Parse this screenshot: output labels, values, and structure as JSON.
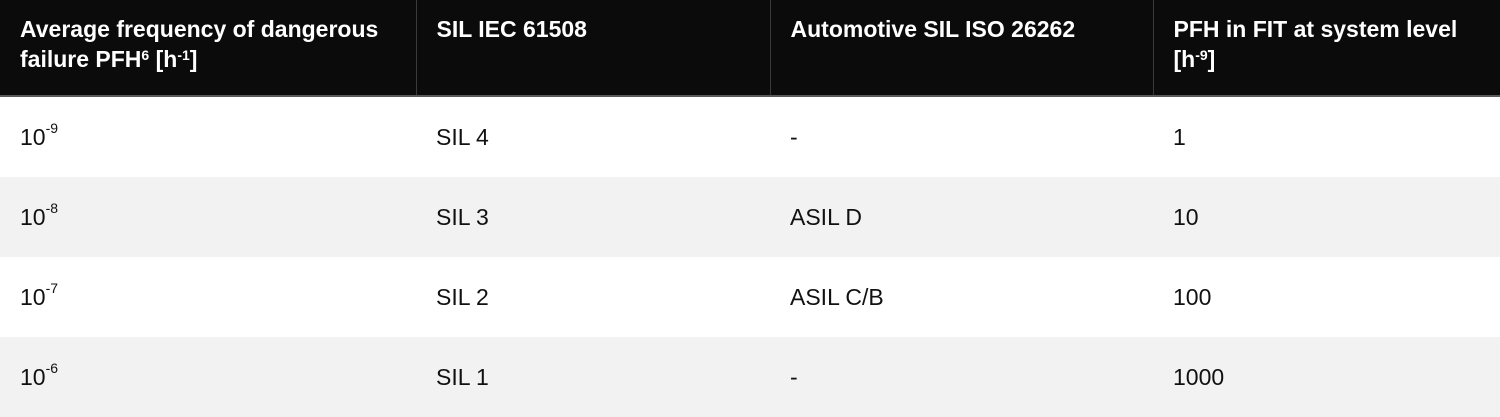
{
  "table": {
    "headers": [
      {
        "text": "Average frequency of dangerous failure PFH",
        "sup": "6",
        "text2": " [h",
        "sup2": "-1",
        "text3": "]"
      },
      {
        "text": "SIL IEC 61508"
      },
      {
        "text": "Automotive SIL ISO 26262"
      },
      {
        "text": "PFH in FIT at system level [h",
        "sup": "-9",
        "text2": "]"
      }
    ],
    "rows": [
      {
        "pfh_base": "10",
        "pfh_exp": "-9",
        "sil": "SIL 4",
        "asil": "-",
        "fit": "1"
      },
      {
        "pfh_base": "10",
        "pfh_exp": "-8",
        "sil": "SIL 3",
        "asil": "ASIL D",
        "fit": "10"
      },
      {
        "pfh_base": "10",
        "pfh_exp": "-7",
        "sil": "SIL 2",
        "asil": "ASIL C/B",
        "fit": "100"
      },
      {
        "pfh_base": "10",
        "pfh_exp": "-6",
        "sil": "SIL 1",
        "asil": "-",
        "fit": "1000"
      }
    ]
  }
}
